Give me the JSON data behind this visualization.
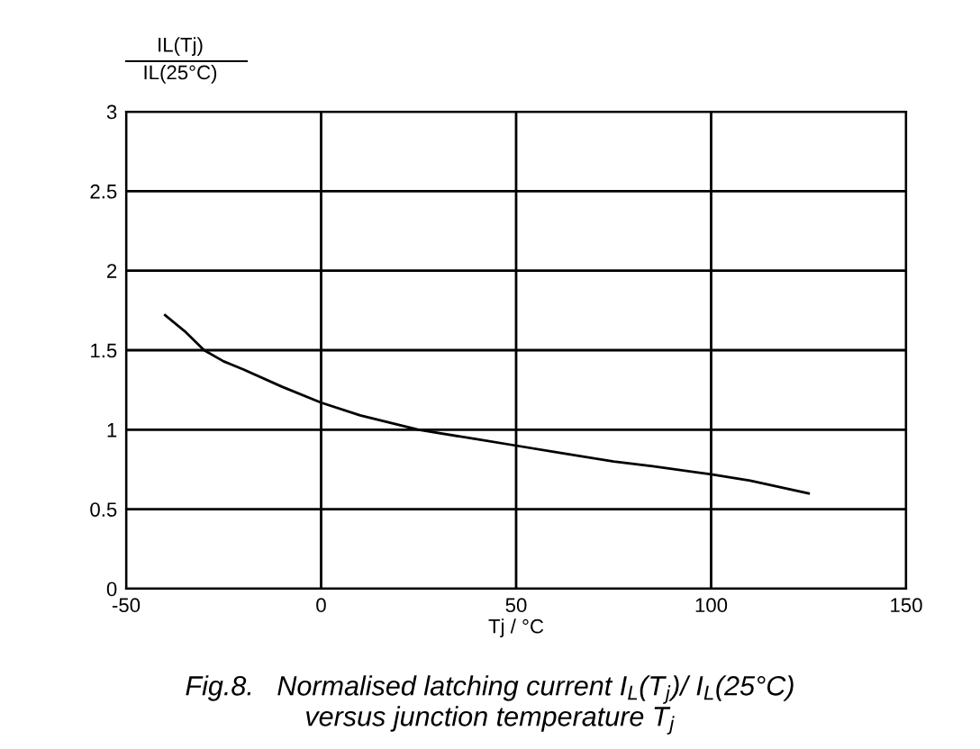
{
  "chart_data": {
    "type": "line",
    "title": "Fig.8.   Normalised latching current I$_{L}$(T$_{j}$)/ I$_{L}$(25°C)\nversus junction temperature T$_{j}$",
    "xlabel": "Tj / °C",
    "ylabel": "IL(Tj)\nIL(25°C)",
    "x": [
      -40,
      -35,
      -30,
      -25,
      -20,
      -10,
      0,
      10,
      25,
      40,
      50,
      60,
      75,
      85,
      100,
      110,
      125
    ],
    "series": [
      {
        "color": "#000000",
        "values": [
          1.72,
          1.62,
          1.5,
          1.43,
          1.38,
          1.27,
          1.17,
          1.09,
          1.0,
          0.94,
          0.9,
          0.86,
          0.8,
          0.77,
          0.72,
          0.68,
          0.6
        ]
      }
    ],
    "xlim": [
      -50,
      150
    ],
    "ylim": [
      0,
      3
    ],
    "xticks": [
      -50,
      0,
      50,
      100,
      150
    ],
    "yticks": [
      0,
      0.5,
      1,
      1.5,
      2,
      2.5,
      3
    ],
    "grid": true,
    "line_style": "solid",
    "marker": "none"
  }
}
